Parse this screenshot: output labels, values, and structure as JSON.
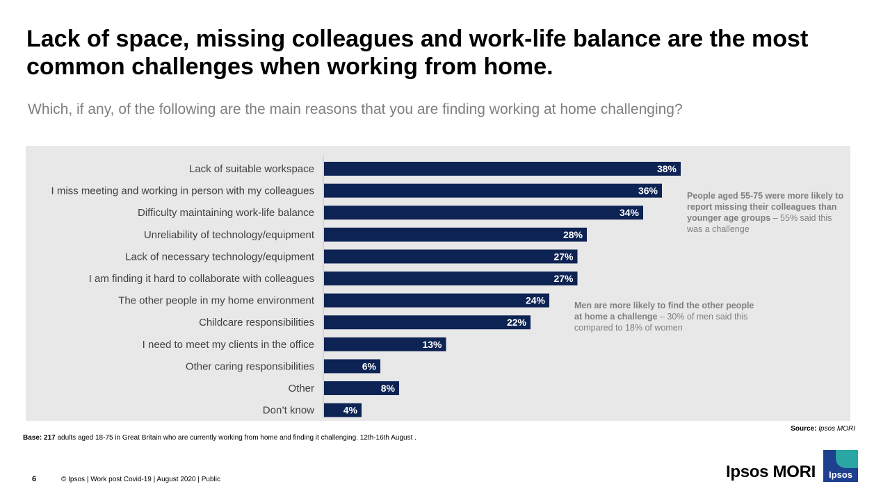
{
  "title": "Lack of space, missing colleagues and work-life balance are the most common challenges when working from home.",
  "subtitle": "Which, if any, of the following are the main reasons that you are finding working at home challenging?",
  "chart_data": {
    "type": "bar",
    "orientation": "horizontal",
    "categories": [
      "Lack of suitable workspace",
      "I miss meeting and working in person with my colleagues",
      "Difficulty maintaining work-life balance",
      "Unreliability of technology/equipment",
      "Lack of necessary technology/equipment",
      "I am finding it hard to collaborate with colleagues",
      "The other people in my home environment",
      "Childcare responsibilities",
      "I need to meet my clients in the office",
      "Other caring responsibilities",
      "Other",
      "Don’t know"
    ],
    "values": [
      38,
      36,
      34,
      28,
      27,
      27,
      24,
      22,
      13,
      6,
      8,
      4
    ],
    "value_labels": [
      "38%",
      "36%",
      "34%",
      "28%",
      "27%",
      "27%",
      "24%",
      "22%",
      "13%",
      "6%",
      "8%",
      "4%"
    ],
    "unit": "%",
    "xlim": [
      0,
      100
    ],
    "bar_color": "#0d2353",
    "label_color": "#ffffff",
    "background": "#e8e8e8",
    "grid": false
  },
  "notes": [
    {
      "bold": "People aged 55-75 were more likely to report missing their colleagues than younger age groups",
      "regular": " – 55% said this was a challenge"
    },
    {
      "bold": "Men are more likely to find the other people at home a challenge",
      "regular": " – 30% of men said this compared to 18% of women"
    }
  ],
  "base": {
    "label": "Base:",
    "count": "217",
    "text": " adults aged 18-75 in Great Britain who are currently working from home and finding it challenging. 12th-16th August ."
  },
  "source": {
    "label": "Source:",
    "value": "Ipsos MORI"
  },
  "page_number": "6",
  "footer": "© Ipsos | Work post Covid-19 | August 2020 | Public",
  "brand": {
    "name": "Ipsos MORI",
    "logo_text": "Ipsos",
    "logo_blue": "#1f3f8f",
    "logo_teal": "#2aa6a4"
  }
}
